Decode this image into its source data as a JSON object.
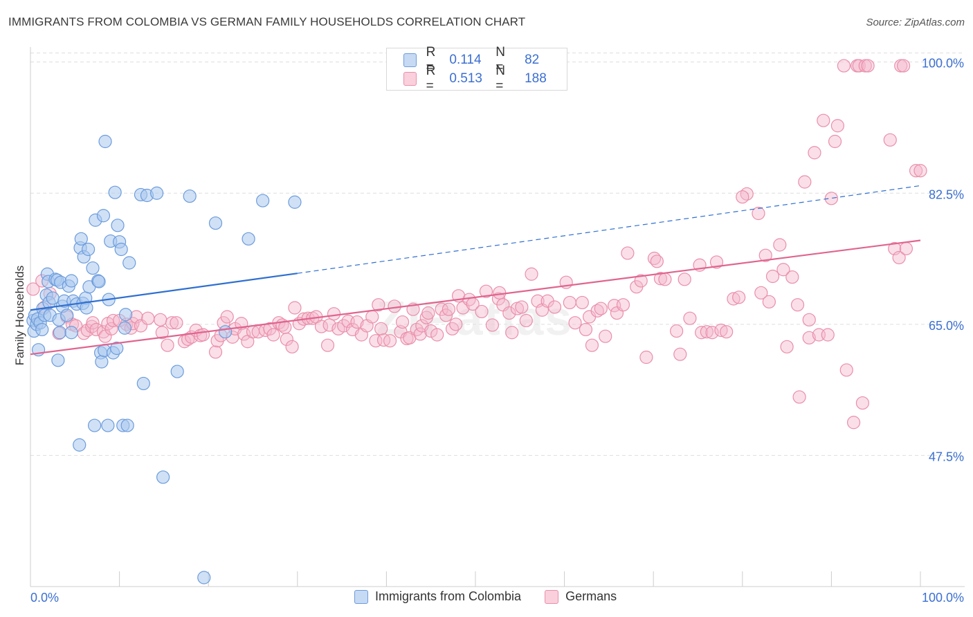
{
  "title": "IMMIGRANTS FROM COLOMBIA VS GERMAN FAMILY HOUSEHOLDS CORRELATION CHART",
  "source": "Source: ZipAtlas.com",
  "watermark": "ZIPatlas",
  "colors": {
    "blue_fill": "#a9c8ee",
    "blue_stroke": "#6b9bdc",
    "blue_line": "#2f6fd0",
    "pink_fill": "#f5b8cb",
    "pink_stroke": "#ea8eaa",
    "pink_line": "#e0648f",
    "axis_label": "#3b6fd1",
    "grid": "#dddddd"
  },
  "legend": {
    "rows": [
      {
        "r_label": "R =",
        "r_value": "0.114",
        "n_label": "N =",
        "n_value": "82"
      },
      {
        "r_label": "R =",
        "r_value": "0.513",
        "n_label": "N =",
        "n_value": "188"
      }
    ]
  },
  "bottom_legend": [
    "Immigrants from Colombia",
    "Germans"
  ],
  "chart_data": {
    "type": "scatter",
    "title": "IMMIGRANTS FROM COLOMBIA VS GERMAN FAMILY HOUSEHOLDS CORRELATION CHART",
    "xlabel": "",
    "ylabel": "Family Households",
    "xlim": [
      0,
      100
    ],
    "ylim": [
      30,
      102
    ],
    "x_tick_labels": [
      "0.0%",
      "100.0%"
    ],
    "y_ticks": [
      47.5,
      65.0,
      82.5,
      100.0
    ],
    "y_tick_labels": [
      "47.5%",
      "65.0%",
      "82.5%",
      "100.0%"
    ],
    "series": [
      {
        "name": "Immigrants from Colombia",
        "R": 0.114,
        "N": 82,
        "trend_solid": [
          [
            0,
            66.9
          ],
          [
            30,
            71.8
          ]
        ],
        "trend_dashed": [
          [
            30,
            71.8
          ],
          [
            100,
            83.5
          ]
        ],
        "points": [
          [
            0.3,
            65.5
          ],
          [
            0.4,
            64.1
          ],
          [
            0.5,
            66.2
          ],
          [
            0.7,
            65.0
          ],
          [
            0.8,
            65.7
          ],
          [
            0.9,
            61.6
          ],
          [
            1.1,
            65.2
          ],
          [
            1.3,
            64.3
          ],
          [
            1.4,
            67.1
          ],
          [
            1.6,
            66.2
          ],
          [
            1.8,
            68.9
          ],
          [
            1.9,
            71.7
          ],
          [
            2.0,
            70.7
          ],
          [
            2.1,
            67.9
          ],
          [
            2.2,
            66.2
          ],
          [
            2.5,
            68.5
          ],
          [
            2.8,
            71.0
          ],
          [
            3.0,
            70.9
          ],
          [
            3.1,
            60.2
          ],
          [
            3.2,
            65.6
          ],
          [
            3.3,
            63.9
          ],
          [
            3.4,
            70.6
          ],
          [
            3.6,
            67.4
          ],
          [
            3.8,
            68.1
          ],
          [
            4.1,
            66.2
          ],
          [
            4.3,
            70.1
          ],
          [
            4.6,
            70.8
          ],
          [
            4.6,
            63.9
          ],
          [
            4.8,
            68.1
          ],
          [
            5.2,
            67.7
          ],
          [
            5.5,
            48.9
          ],
          [
            5.6,
            75.2
          ],
          [
            5.7,
            76.4
          ],
          [
            5.9,
            67.8
          ],
          [
            6.0,
            74.0
          ],
          [
            6.2,
            68.5
          ],
          [
            6.3,
            67.2
          ],
          [
            6.5,
            75.0
          ],
          [
            6.6,
            70.0
          ],
          [
            7.0,
            72.5
          ],
          [
            7.2,
            51.5
          ],
          [
            7.3,
            78.9
          ],
          [
            7.6,
            70.8
          ],
          [
            7.7,
            70.7
          ],
          [
            7.9,
            61.2
          ],
          [
            8.0,
            60.0
          ],
          [
            8.2,
            79.5
          ],
          [
            8.3,
            61.5
          ],
          [
            8.4,
            89.4
          ],
          [
            8.7,
            51.5
          ],
          [
            8.8,
            68.3
          ],
          [
            9.0,
            76.1
          ],
          [
            9.3,
            61.2
          ],
          [
            9.5,
            82.6
          ],
          [
            9.7,
            61.8
          ],
          [
            9.8,
            78.2
          ],
          [
            10.0,
            76.0
          ],
          [
            10.2,
            75.0
          ],
          [
            10.4,
            51.5
          ],
          [
            10.6,
            64.5
          ],
          [
            10.7,
            66.3
          ],
          [
            10.9,
            51.5
          ],
          [
            11.1,
            73.2
          ],
          [
            12.4,
            82.3
          ],
          [
            12.7,
            57.1
          ],
          [
            13.1,
            82.2
          ],
          [
            14.2,
            82.5
          ],
          [
            14.9,
            44.6
          ],
          [
            16.5,
            58.7
          ],
          [
            17.9,
            82.1
          ],
          [
            19.5,
            31.2
          ],
          [
            20.8,
            78.5
          ],
          [
            21.9,
            64.0
          ],
          [
            24.5,
            76.4
          ],
          [
            26.1,
            81.5
          ],
          [
            29.7,
            81.3
          ]
        ]
      },
      {
        "name": "Germans",
        "R": 0.513,
        "N": 188,
        "trend_solid": [
          [
            0,
            61.0
          ],
          [
            100,
            76.2
          ]
        ],
        "points": [
          [
            0.3,
            69.7
          ],
          [
            1.3,
            70.8
          ],
          [
            1.6,
            67.3
          ],
          [
            2.2,
            69.1
          ],
          [
            3.2,
            63.8
          ],
          [
            4.1,
            66.0
          ],
          [
            4.7,
            65.0
          ],
          [
            5.1,
            64.8
          ],
          [
            6.0,
            63.8
          ],
          [
            6.4,
            64.2
          ],
          [
            6.9,
            64.7
          ],
          [
            7.0,
            65.2
          ],
          [
            7.4,
            64.3
          ],
          [
            8.2,
            64.0
          ],
          [
            8.4,
            63.4
          ],
          [
            8.7,
            65.1
          ],
          [
            9.1,
            64.4
          ],
          [
            9.3,
            65.5
          ],
          [
            10.0,
            65.5
          ],
          [
            10.8,
            65.0
          ],
          [
            11.3,
            64.5
          ],
          [
            11.5,
            65.1
          ],
          [
            11.9,
            66.0
          ],
          [
            12.4,
            64.8
          ],
          [
            13.2,
            65.8
          ],
          [
            14.6,
            65.6
          ],
          [
            14.8,
            63.9
          ],
          [
            15.4,
            62.2
          ],
          [
            15.9,
            65.2
          ],
          [
            16.4,
            65.2
          ],
          [
            17.3,
            62.7
          ],
          [
            17.7,
            63.0
          ],
          [
            18.1,
            63.3
          ],
          [
            18.6,
            64.2
          ],
          [
            19.1,
            63.5
          ],
          [
            19.4,
            63.6
          ],
          [
            20.8,
            61.3
          ],
          [
            21.0,
            62.8
          ],
          [
            21.4,
            63.5
          ],
          [
            21.7,
            65.2
          ],
          [
            22.1,
            66.0
          ],
          [
            22.7,
            63.3
          ],
          [
            23.0,
            64.4
          ],
          [
            23.7,
            65.1
          ],
          [
            24.0,
            63.7
          ],
          [
            24.4,
            62.7
          ],
          [
            25.0,
            64.0
          ],
          [
            25.6,
            64.0
          ],
          [
            26.4,
            64.2
          ],
          [
            26.9,
            64.4
          ],
          [
            27.3,
            63.6
          ],
          [
            27.9,
            65.2
          ],
          [
            28.3,
            64.9
          ],
          [
            28.6,
            64.6
          ],
          [
            28.8,
            63.0
          ],
          [
            29.4,
            62.0
          ],
          [
            29.7,
            67.2
          ],
          [
            30.2,
            65.1
          ],
          [
            30.7,
            65.7
          ],
          [
            31.2,
            65.8
          ],
          [
            31.7,
            65.8
          ],
          [
            32.1,
            66.0
          ],
          [
            32.7,
            64.7
          ],
          [
            33.4,
            62.2
          ],
          [
            33.6,
            64.9
          ],
          [
            34.1,
            66.4
          ],
          [
            34.6,
            64.4
          ],
          [
            35.2,
            64.8
          ],
          [
            35.7,
            65.4
          ],
          [
            36.2,
            64.3
          ],
          [
            36.7,
            65.3
          ],
          [
            37.2,
            63.6
          ],
          [
            37.8,
            64.8
          ],
          [
            38.4,
            66.0
          ],
          [
            38.8,
            62.8
          ],
          [
            39.1,
            67.6
          ],
          [
            39.4,
            64.4
          ],
          [
            39.7,
            62.9
          ],
          [
            40.4,
            62.8
          ],
          [
            40.9,
            67.4
          ],
          [
            41.6,
            64.0
          ],
          [
            41.8,
            65.3
          ],
          [
            42.3,
            63.1
          ],
          [
            42.6,
            63.2
          ],
          [
            43.0,
            67.0
          ],
          [
            43.4,
            64.3
          ],
          [
            43.8,
            63.7
          ],
          [
            44.0,
            64.8
          ],
          [
            44.5,
            65.9
          ],
          [
            44.7,
            66.5
          ],
          [
            45.0,
            64.1
          ],
          [
            45.7,
            63.6
          ],
          [
            46.2,
            67.0
          ],
          [
            46.7,
            66.2
          ],
          [
            47.0,
            67.0
          ],
          [
            47.4,
            64.4
          ],
          [
            47.8,
            65.0
          ],
          [
            48.1,
            68.8
          ],
          [
            48.6,
            67.2
          ],
          [
            49.3,
            68.3
          ],
          [
            49.7,
            67.7
          ],
          [
            50.7,
            66.7
          ],
          [
            51.2,
            69.4
          ],
          [
            51.9,
            64.9
          ],
          [
            52.6,
            68.4
          ],
          [
            52.7,
            69.2
          ],
          [
            53.1,
            67.6
          ],
          [
            53.8,
            66.5
          ],
          [
            54.1,
            63.9
          ],
          [
            54.7,
            67.1
          ],
          [
            55.2,
            67.3
          ],
          [
            55.7,
            65.5
          ],
          [
            56.3,
            71.7
          ],
          [
            57.0,
            68.1
          ],
          [
            57.5,
            66.9
          ],
          [
            58.1,
            68.1
          ],
          [
            58.9,
            67.3
          ],
          [
            60.2,
            70.6
          ],
          [
            60.6,
            67.9
          ],
          [
            61.2,
            65.2
          ],
          [
            62.0,
            67.9
          ],
          [
            62.4,
            64.3
          ],
          [
            62.8,
            66.0
          ],
          [
            63.1,
            62.2
          ],
          [
            63.7,
            66.8
          ],
          [
            64.1,
            67.1
          ],
          [
            64.6,
            63.4
          ],
          [
            65.6,
            67.5
          ],
          [
            65.9,
            66.5
          ],
          [
            66.6,
            67.6
          ],
          [
            67.1,
            74.5
          ],
          [
            68.1,
            70.0
          ],
          [
            68.6,
            70.8
          ],
          [
            69.2,
            60.6
          ],
          [
            70.1,
            73.8
          ],
          [
            70.4,
            73.4
          ],
          [
            70.8,
            71.1
          ],
          [
            71.3,
            71.0
          ],
          [
            72.6,
            64.1
          ],
          [
            73.5,
            71.0
          ],
          [
            74.1,
            65.8
          ],
          [
            75.2,
            72.9
          ],
          [
            75.4,
            63.9
          ],
          [
            76.0,
            64.0
          ],
          [
            76.6,
            63.9
          ],
          [
            77.1,
            73.3
          ],
          [
            77.6,
            64.2
          ],
          [
            78.2,
            64.0
          ],
          [
            79.0,
            68.4
          ],
          [
            79.6,
            68.6
          ],
          [
            80.5,
            82.4
          ],
          [
            81.8,
            79.8
          ],
          [
            82.1,
            69.2
          ],
          [
            82.6,
            74.2
          ],
          [
            83.4,
            71.4
          ],
          [
            84.2,
            75.6
          ],
          [
            84.6,
            72.3
          ],
          [
            85.6,
            71.3
          ],
          [
            86.2,
            67.6
          ],
          [
            86.4,
            55.3
          ],
          [
            87.0,
            84.0
          ],
          [
            87.5,
            63.2
          ],
          [
            88.1,
            87.9
          ],
          [
            88.6,
            63.6
          ],
          [
            89.1,
            92.2
          ],
          [
            89.6,
            63.6
          ],
          [
            90.4,
            89.4
          ],
          [
            90.7,
            91.5
          ],
          [
            91.4,
            99.5
          ],
          [
            91.7,
            58.9
          ],
          [
            92.5,
            51.9
          ],
          [
            92.9,
            99.5
          ],
          [
            93.1,
            99.5
          ],
          [
            93.5,
            54.5
          ],
          [
            93.8,
            99.5
          ],
          [
            94.1,
            99.5
          ],
          [
            96.6,
            89.6
          ],
          [
            97.1,
            75.1
          ],
          [
            97.6,
            73.9
          ],
          [
            97.8,
            99.5
          ],
          [
            98.1,
            99.5
          ],
          [
            98.4,
            75.1
          ],
          [
            99.5,
            85.5
          ],
          [
            100.0,
            85.5
          ],
          [
            90.0,
            81.8
          ],
          [
            80.0,
            82.0
          ],
          [
            85.0,
            62.0
          ],
          [
            87.5,
            65.6
          ],
          [
            83.0,
            68.0
          ],
          [
            73.0,
            61.0
          ]
        ]
      }
    ]
  }
}
